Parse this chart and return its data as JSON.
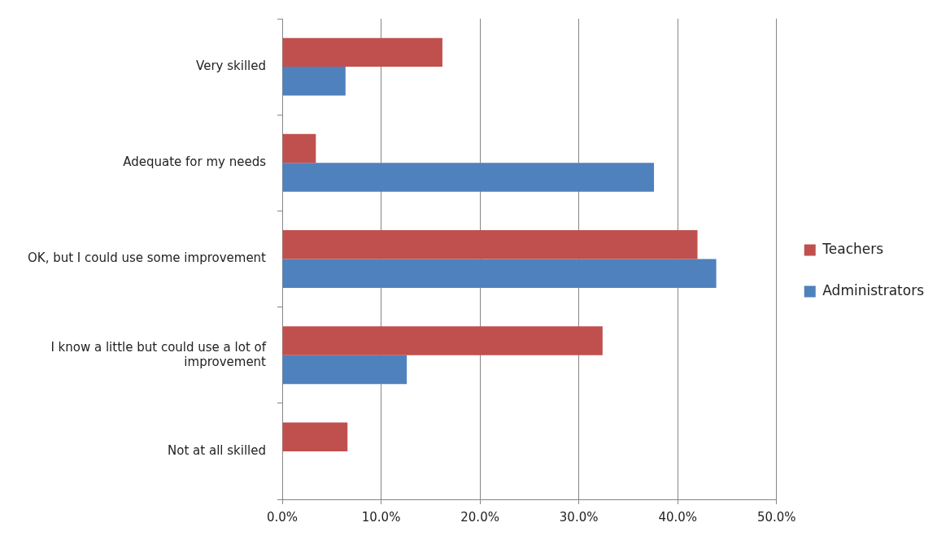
{
  "chart_data": {
    "type": "bar",
    "orientation": "horizontal",
    "categories": [
      "Very skilled",
      "Adequate for my needs",
      "OK, but I could use some improvement",
      "I know a little but could use a lot of improvement",
      "Not at all skilled"
    ],
    "series": [
      {
        "name": "Teachers",
        "color": "#c0504d",
        "values": [
          16.2,
          3.4,
          42.0,
          32.4,
          6.6
        ]
      },
      {
        "name": "Administrators",
        "color": "#4f81bd",
        "values": [
          6.4,
          37.6,
          43.9,
          12.6,
          0
        ]
      }
    ],
    "xlim": [
      0,
      50
    ],
    "xticks": [
      {
        "value": 0,
        "label": "0.0%"
      },
      {
        "value": 10,
        "label": "10.0%"
      },
      {
        "value": 20,
        "label": "20.0%"
      },
      {
        "value": 30,
        "label": "30.0%"
      },
      {
        "value": 40,
        "label": "40.0%"
      },
      {
        "value": 50,
        "label": "50.0%"
      }
    ],
    "grid": "x",
    "legend": "right"
  }
}
